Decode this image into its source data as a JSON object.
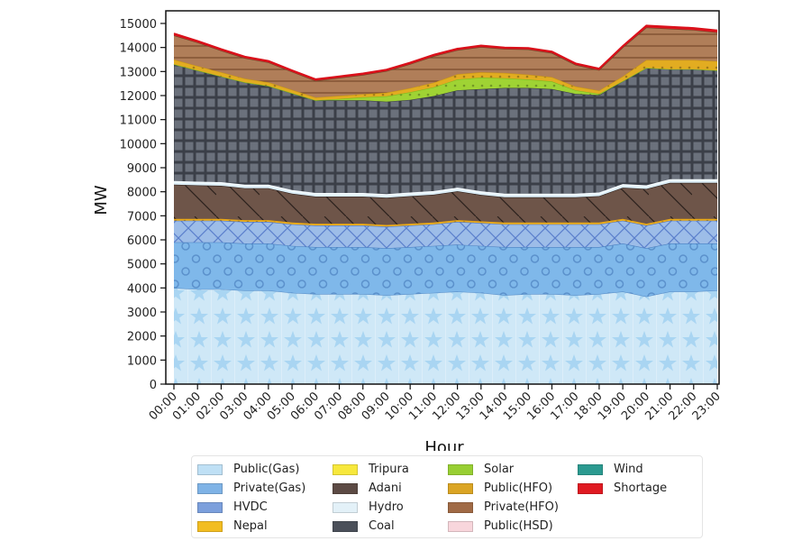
{
  "chart_data": {
    "type": "area",
    "stacked": true,
    "title": "",
    "xlabel": "Hour",
    "ylabel": "MW",
    "ylim": [
      0,
      15000
    ],
    "yticks": [
      0,
      1000,
      2000,
      3000,
      4000,
      5000,
      6000,
      7000,
      8000,
      9000,
      10000,
      11000,
      12000,
      13000,
      14000,
      15000
    ],
    "categories": [
      "00:00",
      "01:00",
      "02:00",
      "03:00",
      "04:00",
      "05:00",
      "06:00",
      "07:00",
      "08:00",
      "09:00",
      "10:00",
      "11:00",
      "12:00",
      "13:00",
      "14:00",
      "15:00",
      "16:00",
      "17:00",
      "18:00",
      "19:00",
      "20:00",
      "21:00",
      "22:00",
      "23:00"
    ],
    "legend_position": "bottom",
    "grid": false,
    "series": [
      {
        "name": "Public(Gas)",
        "color": "#cfe8f7",
        "pattern": "stars",
        "values": [
          4000,
          3950,
          3950,
          3900,
          3900,
          3800,
          3750,
          3750,
          3750,
          3700,
          3750,
          3800,
          3850,
          3800,
          3700,
          3750,
          3750,
          3700,
          3750,
          3850,
          3650,
          3850,
          3850,
          3900
        ]
      },
      {
        "name": "Private(Gas)",
        "color": "#7fb8ea",
        "pattern": "circles",
        "values": [
          1900,
          1950,
          1950,
          1950,
          1950,
          1950,
          1950,
          1950,
          1950,
          1950,
          1950,
          1950,
          1950,
          1950,
          2000,
          1950,
          1950,
          2000,
          1950,
          2000,
          2000,
          2000,
          2000,
          1950
        ]
      },
      {
        "name": "HVDC",
        "color": "#9dbde8",
        "pattern": "crosshatch",
        "values": [
          900,
          900,
          900,
          900,
          900,
          900,
          900,
          900,
          900,
          900,
          900,
          900,
          950,
          950,
          950,
          950,
          950,
          950,
          950,
          950,
          950,
          950,
          950,
          950
        ]
      },
      {
        "name": "Nepal",
        "color": "#f2b41d",
        "pattern": "dots",
        "values": [
          70,
          70,
          70,
          70,
          70,
          70,
          70,
          70,
          70,
          70,
          70,
          70,
          70,
          70,
          70,
          70,
          70,
          70,
          70,
          70,
          70,
          70,
          70,
          70
        ]
      },
      {
        "name": "Tripura",
        "color": "#f7e94a",
        "pattern": "none",
        "values": [
          0,
          0,
          0,
          0,
          0,
          0,
          0,
          0,
          0,
          0,
          0,
          0,
          0,
          0,
          0,
          0,
          0,
          0,
          0,
          0,
          0,
          0,
          0,
          0
        ]
      },
      {
        "name": "Adani",
        "color": "#6e5549",
        "pattern": "diagonal",
        "values": [
          1430,
          1400,
          1380,
          1330,
          1330,
          1200,
          1130,
          1130,
          1130,
          1130,
          1150,
          1160,
          1200,
          1100,
          1050,
          1050,
          1050,
          1050,
          1100,
          1300,
          1450,
          1500,
          1500,
          1500
        ]
      },
      {
        "name": "Hydro",
        "color": "#deeff8",
        "pattern": "none",
        "values": [
          150,
          150,
          150,
          150,
          150,
          150,
          150,
          150,
          150,
          150,
          150,
          150,
          150,
          150,
          150,
          150,
          150,
          150,
          150,
          150,
          150,
          150,
          150,
          150
        ]
      },
      {
        "name": "Coal",
        "color": "#6b717c",
        "pattern": "grid",
        "values": [
          4850,
          4630,
          4400,
          4250,
          4100,
          4030,
          3850,
          3850,
          3850,
          3850,
          3850,
          3950,
          4050,
          4250,
          4400,
          4400,
          4350,
          4150,
          4050,
          4280,
          4880,
          4580,
          4580,
          4530
        ]
      },
      {
        "name": "Solar",
        "color": "#9fd334",
        "pattern": "dots",
        "values": [
          0,
          0,
          0,
          0,
          0,
          0,
          0,
          60,
          130,
          220,
          320,
          370,
          450,
          480,
          400,
          350,
          320,
          150,
          50,
          0,
          0,
          0,
          0,
          0
        ]
      },
      {
        "name": "Public(HFO)",
        "color": "#e2ac21",
        "pattern": "dots",
        "values": [
          200,
          180,
          170,
          160,
          150,
          140,
          120,
          130,
          130,
          150,
          170,
          190,
          220,
          220,
          220,
          200,
          180,
          160,
          140,
          200,
          330,
          380,
          380,
          380
        ]
      },
      {
        "name": "Private(HFO)",
        "color": "#b07e59",
        "pattern": "horizontal",
        "values": [
          1000,
          980,
          900,
          850,
          830,
          750,
          700,
          750,
          800,
          900,
          1000,
          1100,
          1000,
          1050,
          1000,
          1050,
          1000,
          900,
          850,
          1200,
          1350,
          1300,
          1250,
          1200
        ]
      },
      {
        "name": "Public(HSD)",
        "color": "#f8d3da",
        "pattern": "none",
        "values": [
          0,
          0,
          0,
          0,
          0,
          0,
          0,
          0,
          0,
          0,
          0,
          0,
          0,
          0,
          0,
          0,
          0,
          0,
          0,
          0,
          0,
          0,
          0,
          0
        ]
      },
      {
        "name": "Wind",
        "color": "#2c9e93",
        "pattern": "none",
        "values": [
          0,
          0,
          0,
          0,
          0,
          0,
          0,
          0,
          0,
          0,
          0,
          0,
          0,
          0,
          0,
          0,
          0,
          0,
          0,
          0,
          0,
          0,
          0,
          0
        ]
      },
      {
        "name": "Shortage",
        "color": "#e3161f",
        "pattern": "none",
        "values": [
          80,
          60,
          60,
          60,
          60,
          60,
          60,
          60,
          60,
          60,
          60,
          60,
          60,
          60,
          60,
          60,
          60,
          60,
          60,
          60,
          80,
          80,
          80,
          80
        ]
      }
    ]
  },
  "legend": {
    "items": [
      {
        "label": "Public(Gas)",
        "color": "#bfe0f5"
      },
      {
        "label": "Private(Gas)",
        "color": "#7fb3e6"
      },
      {
        "label": "HVDC",
        "color": "#7b9fdc"
      },
      {
        "label": "Nepal",
        "color": "#f2bd21"
      },
      {
        "label": "Tripura",
        "color": "#f7e83c"
      },
      {
        "label": "Adani",
        "color": "#5c4a44"
      },
      {
        "label": "Hydro",
        "color": "#e3f1f8"
      },
      {
        "label": "Coal",
        "color": "#4b505a"
      },
      {
        "label": "Solar",
        "color": "#98cf33"
      },
      {
        "label": "Public(HFO)",
        "color": "#dba524"
      },
      {
        "label": "Private(HFO)",
        "color": "#a06a45"
      },
      {
        "label": "Public(HSD)",
        "color": "#f8d6dc"
      },
      {
        "label": "Wind",
        "color": "#2b9a90"
      },
      {
        "label": "Shortage",
        "color": "#e01a22"
      }
    ]
  }
}
